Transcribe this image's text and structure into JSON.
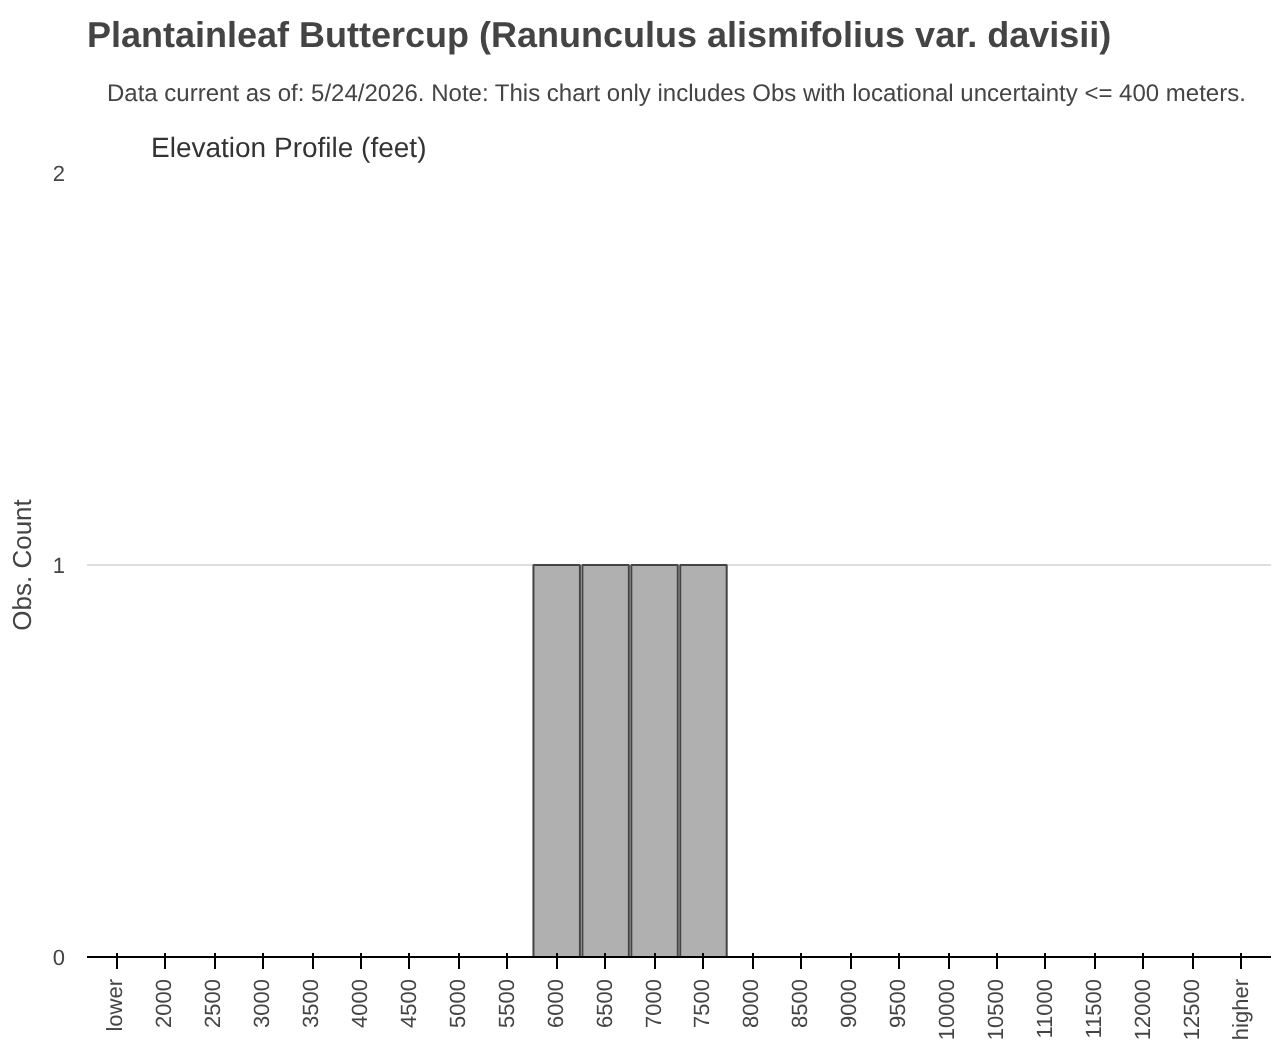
{
  "chart_data": {
    "type": "bar",
    "title": "Plantainleaf Buttercup   (Ranunculus alismifolius var. davisii)",
    "subtitle": "Data current as of: 5/24/2026.    Note: This chart only includes Obs with locational uncertainty <= 400 meters.",
    "annotations": [
      "Elevation Profile (feet)"
    ],
    "ylabel": "Obs. Count",
    "categories": [
      "lower",
      "2000",
      "2500",
      "3000",
      "3500",
      "4000",
      "4500",
      "5000",
      "5500",
      "6000",
      "6500",
      "7000",
      "7500",
      "8000",
      "8500",
      "9000",
      "9500",
      "10000",
      "10500",
      "11000",
      "11500",
      "12000",
      "12500",
      "higher"
    ],
    "values": [
      0,
      0,
      0,
      0,
      0,
      0,
      0,
      0,
      0,
      1,
      1,
      1,
      1,
      0,
      0,
      0,
      0,
      0,
      0,
      0,
      0,
      0,
      0,
      0
    ],
    "color": "#b0b0b0",
    "ylim": [
      0,
      2
    ],
    "yticks": [
      0,
      1,
      2
    ],
    "grid": "y"
  }
}
